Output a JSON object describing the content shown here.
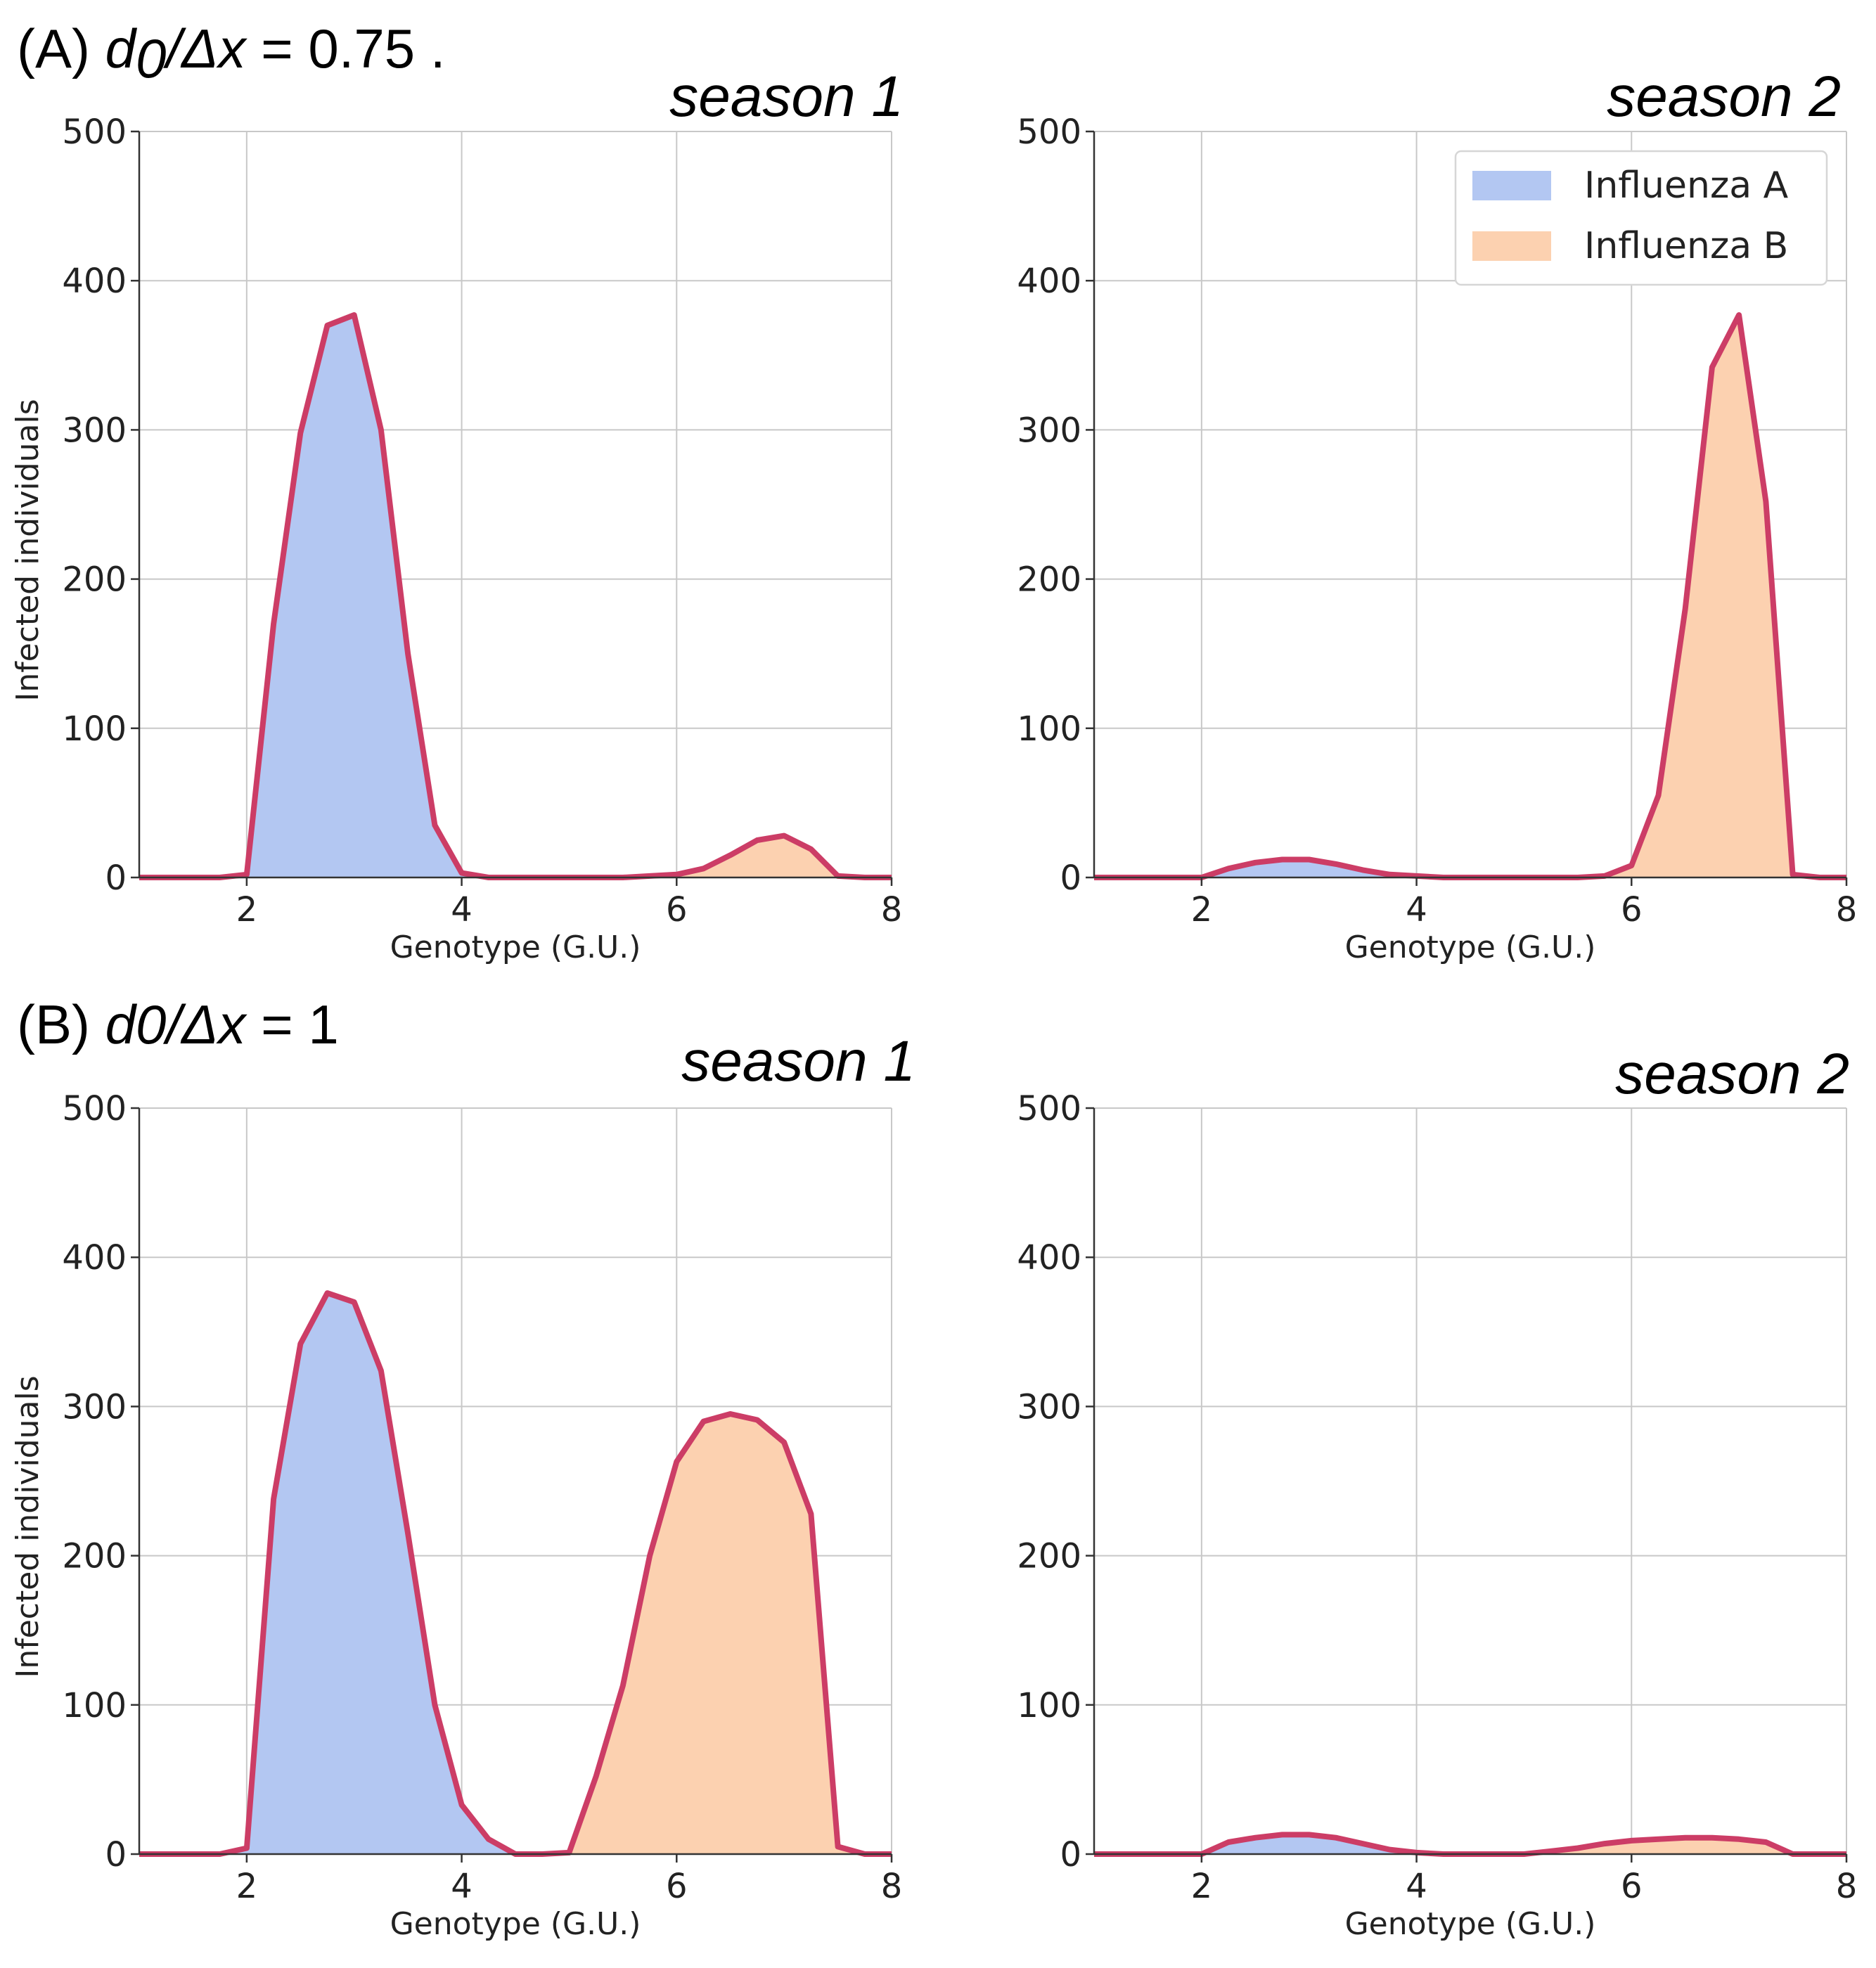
{
  "rows": {
    "a": {
      "prefix": "(A) ",
      "var": "d",
      "sub": "0",
      "rest": "/Δx",
      "value": " = 0.75 ."
    },
    "b": {
      "prefix": "(B) ",
      "var": "d0/Δx",
      "value": " = 1"
    }
  },
  "colors": {
    "influenza_a": "#b3c7f2",
    "influenza_b": "#fcd1b0",
    "outline": "#cc3d66"
  },
  "chart_data": [
    {
      "id": "a1",
      "type": "area",
      "title": "season 1",
      "xlabel": "Genotype (G.U.)",
      "ylabel": "Infected individuals",
      "xlim": [
        1,
        8
      ],
      "ylim": [
        0,
        500
      ],
      "xticks": [
        2,
        4,
        6,
        8
      ],
      "yticks": [
        0,
        100,
        200,
        300,
        400,
        500
      ],
      "legend": null,
      "show_ylabel": true,
      "x": [
        1.0,
        1.25,
        1.5,
        1.75,
        2.0,
        2.25,
        2.5,
        2.75,
        3.0,
        3.25,
        3.5,
        3.75,
        4.0,
        4.25,
        4.5,
        4.75,
        5.0,
        5.25,
        5.5,
        5.75,
        6.0,
        6.25,
        6.5,
        6.75,
        7.0,
        7.25,
        7.5,
        7.75,
        8.0
      ],
      "series": [
        {
          "name": "Influenza A",
          "values": [
            0,
            0,
            0,
            0,
            2,
            170,
            298,
            370,
            377,
            300,
            150,
            35,
            3,
            0,
            0,
            0,
            0,
            0,
            0,
            0,
            0,
            0,
            0,
            0,
            0,
            0,
            0,
            0,
            0
          ]
        },
        {
          "name": "Influenza B",
          "values": [
            0,
            0,
            0,
            0,
            0,
            0,
            0,
            0,
            0,
            0,
            0,
            0,
            0,
            0,
            0,
            0,
            0,
            0,
            0,
            1,
            2,
            6,
            15,
            25,
            28,
            19,
            1,
            0,
            0
          ]
        }
      ]
    },
    {
      "id": "a2",
      "type": "area",
      "title": "season 2",
      "xlabel": "Genotype (G.U.)",
      "ylabel": "",
      "xlim": [
        1,
        8
      ],
      "ylim": [
        0,
        500
      ],
      "xticks": [
        2,
        4,
        6,
        8
      ],
      "yticks": [
        0,
        100,
        200,
        300,
        400,
        500
      ],
      "legend": {
        "position": "top-right",
        "entries": [
          "Influenza A",
          "Influenza B"
        ]
      },
      "show_ylabel": false,
      "x": [
        1.0,
        1.25,
        1.5,
        1.75,
        2.0,
        2.25,
        2.5,
        2.75,
        3.0,
        3.25,
        3.5,
        3.75,
        4.0,
        4.25,
        4.5,
        4.75,
        5.0,
        5.25,
        5.5,
        5.75,
        6.0,
        6.25,
        6.5,
        6.75,
        7.0,
        7.25,
        7.5,
        7.75,
        8.0
      ],
      "series": [
        {
          "name": "Influenza A",
          "values": [
            0,
            0,
            0,
            0,
            0,
            6,
            10,
            12,
            12,
            9,
            5,
            2,
            1,
            0,
            0,
            0,
            0,
            0,
            0,
            0,
            0,
            0,
            0,
            0,
            0,
            0,
            0,
            0,
            0
          ]
        },
        {
          "name": "Influenza B",
          "values": [
            0,
            0,
            0,
            0,
            0,
            0,
            0,
            0,
            0,
            0,
            0,
            0,
            0,
            0,
            0,
            0,
            0,
            0,
            0,
            1,
            8,
            55,
            180,
            342,
            377,
            252,
            2,
            0,
            0
          ]
        }
      ]
    },
    {
      "id": "b1",
      "type": "area",
      "title": "season 1",
      "xlabel": "Genotype (G.U.)",
      "ylabel": "Infected individuals",
      "xlim": [
        1,
        8
      ],
      "ylim": [
        0,
        500
      ],
      "xticks": [
        2,
        4,
        6,
        8
      ],
      "yticks": [
        0,
        100,
        200,
        300,
        400,
        500
      ],
      "legend": null,
      "show_ylabel": true,
      "x": [
        1.0,
        1.25,
        1.5,
        1.75,
        2.0,
        2.25,
        2.5,
        2.75,
        3.0,
        3.25,
        3.5,
        3.75,
        4.0,
        4.25,
        4.5,
        4.75,
        5.0,
        5.25,
        5.5,
        5.75,
        6.0,
        6.25,
        6.5,
        6.75,
        7.0,
        7.25,
        7.5,
        7.75,
        8.0
      ],
      "series": [
        {
          "name": "Influenza A",
          "values": [
            0,
            0,
            0,
            0,
            4,
            238,
            342,
            376,
            370,
            324,
            215,
            100,
            33,
            10,
            0,
            0,
            0,
            0,
            0,
            0,
            0,
            0,
            0,
            0,
            0,
            0,
            0,
            0,
            0
          ]
        },
        {
          "name": "Influenza B",
          "values": [
            0,
            0,
            0,
            0,
            0,
            0,
            0,
            0,
            0,
            0,
            0,
            0,
            0,
            0,
            0,
            0,
            1,
            52,
            113,
            200,
            263,
            290,
            295,
            291,
            276,
            228,
            5,
            0,
            0
          ]
        }
      ]
    },
    {
      "id": "b2",
      "type": "area",
      "title": "season 2",
      "xlabel": "Genotype (G.U.)",
      "ylabel": "",
      "xlim": [
        1,
        8
      ],
      "ylim": [
        0,
        500
      ],
      "xticks": [
        2,
        4,
        6,
        8
      ],
      "yticks": [
        0,
        100,
        200,
        300,
        400,
        500
      ],
      "legend": null,
      "show_ylabel": false,
      "x": [
        1.0,
        1.25,
        1.5,
        1.75,
        2.0,
        2.25,
        2.5,
        2.75,
        3.0,
        3.25,
        3.5,
        3.75,
        4.0,
        4.25,
        4.5,
        4.75,
        5.0,
        5.25,
        5.5,
        5.75,
        6.0,
        6.25,
        6.5,
        6.75,
        7.0,
        7.25,
        7.5,
        7.75,
        8.0
      ],
      "series": [
        {
          "name": "Influenza A",
          "values": [
            0,
            0,
            0,
            0,
            0,
            8,
            11,
            13,
            13,
            11,
            7,
            3,
            1,
            0,
            0,
            0,
            0,
            0,
            0,
            0,
            0,
            0,
            0,
            0,
            0,
            0,
            0,
            0,
            0
          ]
        },
        {
          "name": "Influenza B",
          "values": [
            0,
            0,
            0,
            0,
            0,
            0,
            0,
            0,
            0,
            0,
            0,
            0,
            0,
            0,
            0,
            0,
            0,
            2,
            4,
            7,
            9,
            10,
            11,
            11,
            10,
            8,
            0,
            0,
            0
          ]
        }
      ]
    }
  ]
}
